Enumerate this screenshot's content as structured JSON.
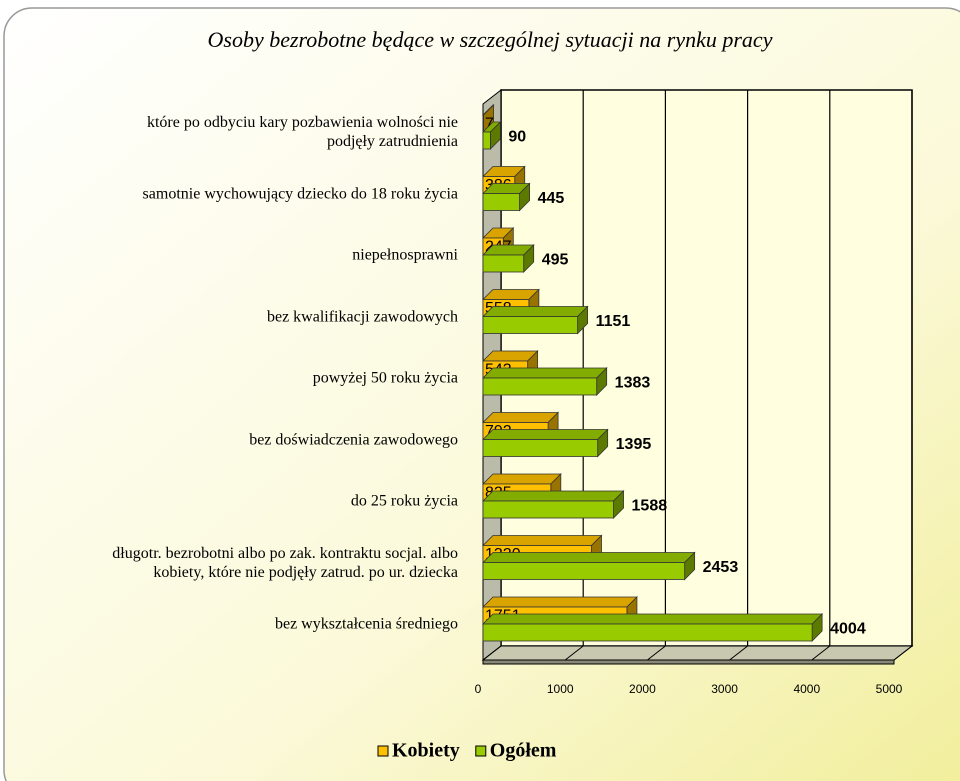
{
  "chart_data": {
    "type": "bar3d_horizontal",
    "title": "Osoby bezrobotne będące w szczególnej sytuacji na rynku pracy",
    "categories": [
      "które po odbyciu kary pozbawienia wolności nie\npodjęły zatrudnienia",
      "samotnie wychowujący dziecko do 18 roku życia",
      "niepełnosprawni",
      "bez kwalifikacji zawodowych",
      "powyżej 50 roku życia",
      "bez doświadczenia zawodowego",
      "do 25 roku życia",
      "długotr. bezrobotni albo po zak. kontraktu socjal. albo\nkobiety, które nie podjęły zatrud. po ur. dziecka",
      "bez wykształcenia średniego"
    ],
    "series": [
      {
        "name": "Kobiety",
        "color": "#ffc000",
        "values": [
          7,
          386,
          247,
          558,
          543,
          792,
          825,
          1320,
          1751
        ]
      },
      {
        "name": "Ogółem",
        "color": "#99cc00",
        "values": [
          90,
          445,
          495,
          1151,
          1383,
          1395,
          1588,
          2453,
          4004
        ]
      }
    ],
    "xlim": [
      0,
      5000
    ],
    "xticks": [
      0,
      1000,
      2000,
      3000,
      4000,
      5000
    ],
    "grid": true,
    "legend": "bottom"
  }
}
